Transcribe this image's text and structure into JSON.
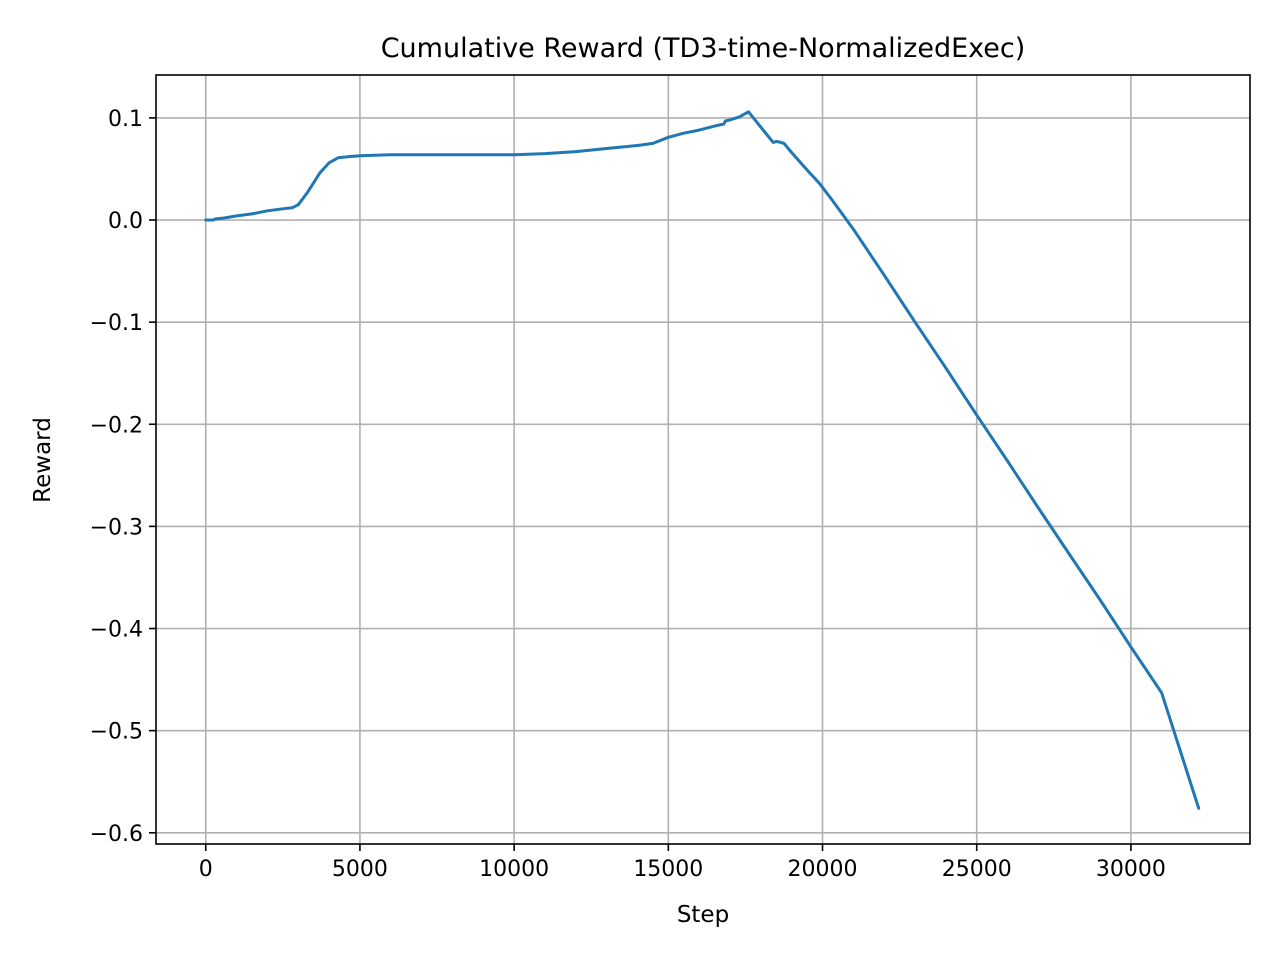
{
  "chart_data": {
    "type": "line",
    "title": "Cumulative Reward (TD3-time-NormalizedExec)",
    "xlabel": "Step",
    "ylabel": "Reward",
    "xlim": [
      -1613,
      33862
    ],
    "ylim": [
      -0.611,
      0.142
    ],
    "grid": true,
    "legend": "none",
    "x_ticks": [
      0,
      5000,
      10000,
      15000,
      20000,
      25000,
      30000
    ],
    "x_tick_labels": [
      "0",
      "5000",
      "10000",
      "15000",
      "20000",
      "25000",
      "30000"
    ],
    "y_ticks": [
      0.1,
      0.0,
      -0.1,
      -0.2,
      -0.3,
      -0.4,
      -0.5,
      -0.6
    ],
    "y_tick_labels": [
      "0.1",
      "0.0",
      "−0.1",
      "−0.2",
      "−0.3",
      "−0.4",
      "−0.5",
      "−0.6"
    ],
    "series": [
      {
        "color": "#1f77b4",
        "x": [
          0,
          250,
          300,
          600,
          1000,
          1500,
          2000,
          2500,
          2800,
          3000,
          3300,
          3700,
          4000,
          4300,
          4600,
          5000,
          6000,
          7000,
          8000,
          9000,
          10000,
          11000,
          12000,
          13000,
          14000,
          14500,
          15000,
          15500,
          16000,
          16500,
          16800,
          16850,
          17000,
          17300,
          17600,
          18000,
          18400,
          18500,
          18650,
          18750,
          19000,
          19500,
          19900,
          20300,
          21000,
          22000,
          23000,
          24000,
          25000,
          26000,
          27000,
          28000,
          29000,
          30000,
          31000,
          32200
        ],
        "y": [
          0.0,
          0.0,
          0.001,
          0.002,
          0.004,
          0.006,
          0.009,
          0.011,
          0.012,
          0.015,
          0.027,
          0.046,
          0.056,
          0.061,
          0.062,
          0.063,
          0.064,
          0.064,
          0.064,
          0.064,
          0.064,
          0.065,
          0.067,
          0.07,
          0.073,
          0.075,
          0.081,
          0.085,
          0.088,
          0.092,
          0.094,
          0.097,
          0.098,
          0.101,
          0.106,
          0.091,
          0.076,
          0.077,
          0.076,
          0.075,
          0.066,
          0.049,
          0.036,
          0.02,
          -0.009,
          -0.054,
          -0.1,
          -0.145,
          -0.191,
          -0.236,
          -0.282,
          -0.327,
          -0.372,
          -0.418,
          -0.463,
          -0.576
        ]
      }
    ]
  }
}
